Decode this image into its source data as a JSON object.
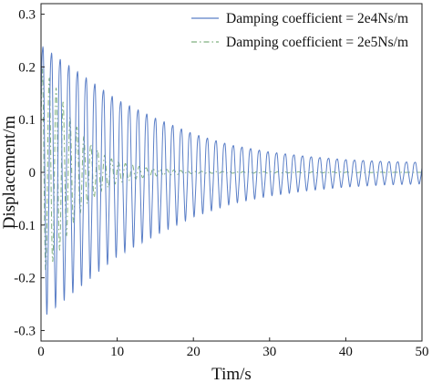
{
  "chart_data": {
    "type": "line",
    "xlabel": "Tim/s",
    "ylabel": "Displacement/m",
    "xlim": [
      0,
      50
    ],
    "ylim": [
      -0.32,
      0.32
    ],
    "xticks": [
      "0",
      "10",
      "20",
      "30",
      "40",
      "50"
    ],
    "yticks": [
      "-0.3",
      "-0.2",
      "-0.1",
      "0",
      "0.1",
      "0.2",
      "0.3"
    ],
    "grid": false,
    "legend_position": "top-right",
    "series": [
      {
        "name": "Damping coefficient = 2e4Ns/m",
        "color": "#5b7fc7",
        "style": "solid",
        "frequency_hz": 0.88,
        "peak_envelope": [
          [
            0,
            0.28
          ],
          [
            5,
            0.22
          ],
          [
            10,
            0.16
          ],
          [
            15,
            0.12
          ],
          [
            20,
            0.085
          ],
          [
            25,
            0.06
          ],
          [
            30,
            0.045
          ],
          [
            35,
            0.035
          ],
          [
            40,
            0.028
          ],
          [
            45,
            0.024
          ],
          [
            50,
            0.022
          ]
        ]
      },
      {
        "name": "Damping  coefficient = 2e5Ns/m",
        "color": "#7fb07f",
        "style": "dash-dot",
        "frequency_hz": 1.1,
        "peak_envelope": [
          [
            0,
            0.2
          ],
          [
            2,
            0.16
          ],
          [
            4,
            0.1
          ],
          [
            6,
            0.06
          ],
          [
            8,
            0.035
          ],
          [
            10,
            0.02
          ],
          [
            14,
            0.008
          ],
          [
            20,
            0.002
          ],
          [
            50,
            0.0
          ]
        ]
      }
    ]
  }
}
